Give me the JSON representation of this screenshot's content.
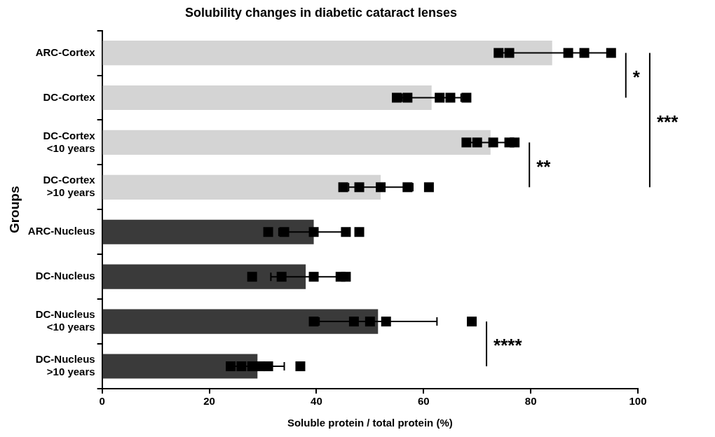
{
  "chart_data": {
    "type": "bar",
    "orientation": "horizontal",
    "title": "Solubility changes in diabetic cataract lenses",
    "x_label": "Soluble protein / total protein (%)",
    "y_label": "Groups",
    "categories": [
      [
        "ARC-Cortex"
      ],
      [
        "DC-Cortex"
      ],
      [
        "DC-Cortex",
        "<10 years"
      ],
      [
        "DC-Cortex",
        ">10 years"
      ],
      [
        "ARC-Nucleus"
      ],
      [
        "DC-Nucleus"
      ],
      [
        "DC-Nucleus",
        "<10 years"
      ],
      [
        "DC-Nucleus",
        ">10 years"
      ]
    ],
    "values": [
      84,
      61.5,
      72.5,
      52,
      39.5,
      38,
      51.5,
      29
    ],
    "errors": [
      10.5,
      5.5,
      4,
      6,
      6.5,
      6.5,
      11,
      5
    ],
    "points": [
      [
        74,
        76,
        87,
        90,
        95
      ],
      [
        55,
        57,
        63,
        65,
        68
      ],
      [
        68,
        70,
        73,
        76,
        77
      ],
      [
        45,
        48,
        52,
        57,
        61
      ],
      [
        31,
        34,
        39.5,
        45.5,
        48
      ],
      [
        28,
        33.5,
        39.5,
        44.5,
        45.5
      ],
      [
        39.5,
        47,
        50,
        53,
        69
      ],
      [
        24,
        26,
        28,
        29.5,
        31,
        37
      ]
    ],
    "colors": [
      "#d4d4d4",
      "#d4d4d4",
      "#d4d4d4",
      "#d4d4d4",
      "#3a3a3a",
      "#3a3a3a",
      "#3a3a3a",
      "#3a3a3a"
    ],
    "marker": "square",
    "annotations": [
      {
        "from": 0,
        "to": 1,
        "label": "*"
      },
      {
        "from": 2,
        "to": 3,
        "label": "**"
      },
      {
        "from": 0,
        "to": 3,
        "label": "***"
      },
      {
        "from": 6,
        "to": 7,
        "label": "****"
      }
    ],
    "xlim": [
      0,
      100
    ],
    "xticks": [
      0,
      20,
      40,
      60,
      80,
      100
    ],
    "grid": false
  }
}
